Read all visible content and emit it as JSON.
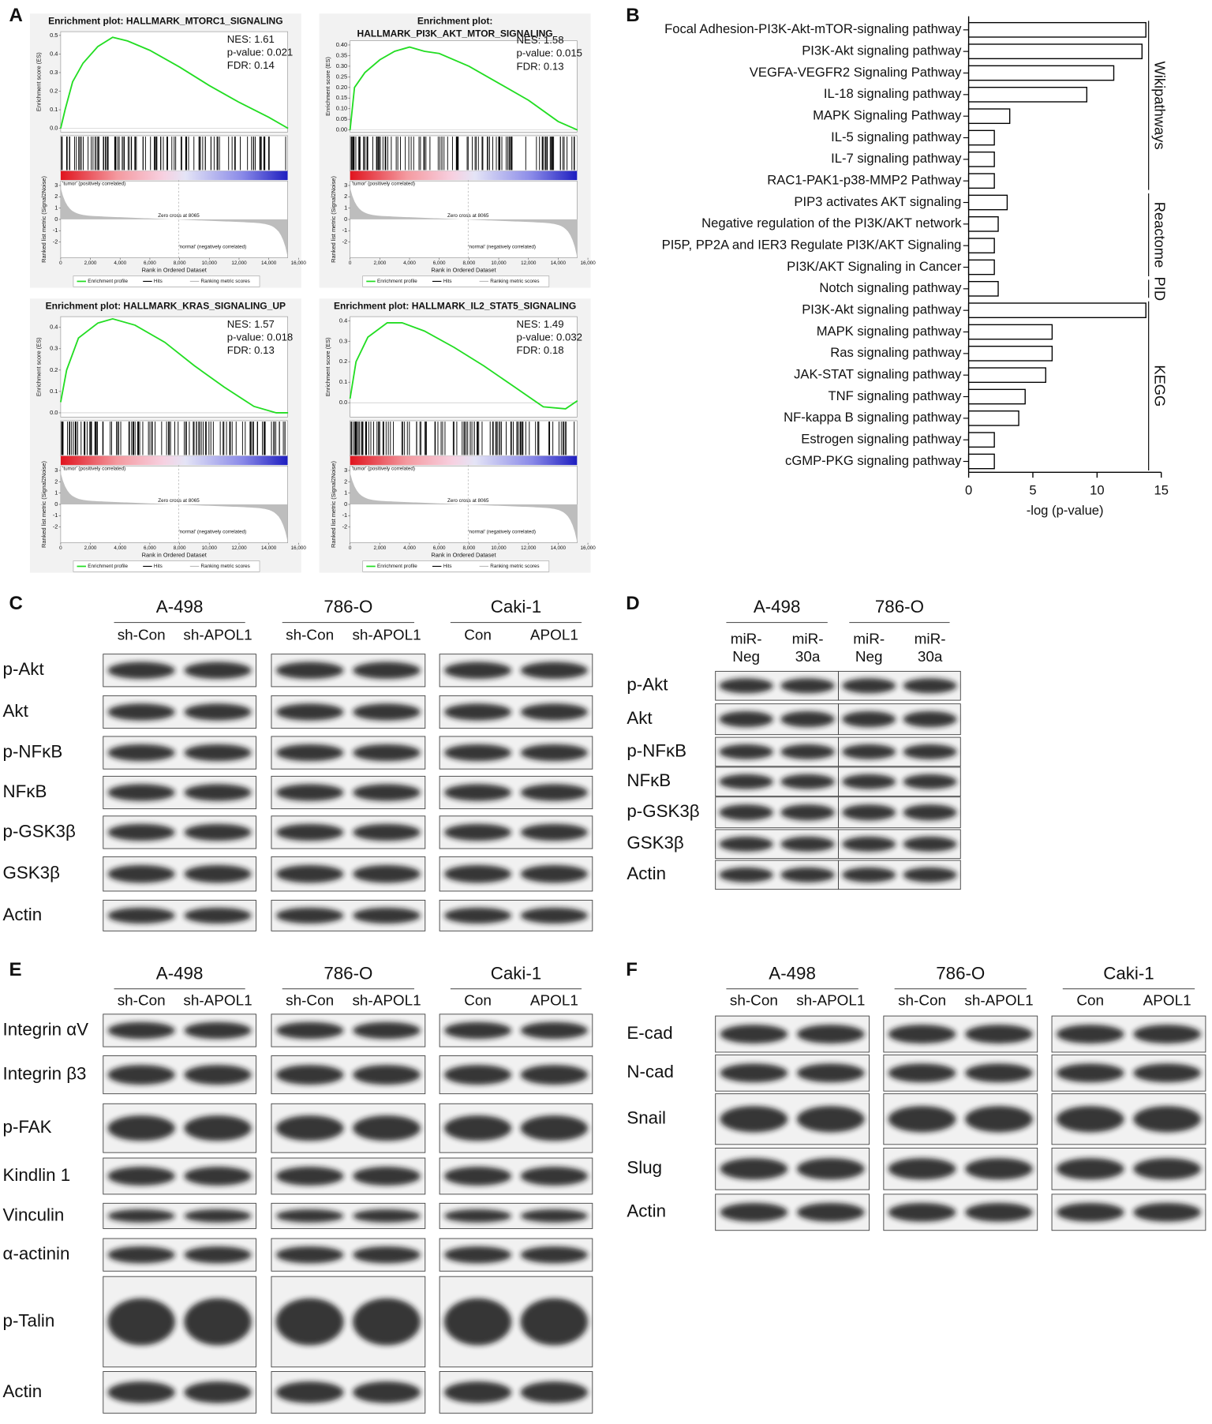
{
  "panel_labels": [
    "A",
    "B"
  ],
  "chart_data": [
    {
      "type": "line",
      "title_lines": [
        "Enrichment plot: HALLMARK_MTORC1_SIGNALING"
      ],
      "stats": [
        "NES: 1.61",
        "p-value: 0.021",
        "FDR: 0.14"
      ],
      "y_label": "Enrichment score (ES)",
      "ylim": [
        -0.02,
        0.52
      ],
      "yticks": [
        {
          "value": 0,
          "label": "0.0"
        },
        0.1,
        0.2,
        0.3,
        0.4,
        0.5
      ],
      "x": [
        0,
        300,
        800,
        1500,
        2500,
        3500,
        4500,
        6000,
        8000,
        10000,
        12000,
        14000,
        15300
      ],
      "series": [
        {
          "name": "Enrichment profile",
          "color": "#22dd22",
          "values": [
            0,
            0.1,
            0.25,
            0.35,
            0.44,
            0.49,
            0.47,
            0.42,
            0.33,
            0.23,
            0.14,
            0.06,
            0
          ]
        }
      ],
      "legend_extra": [
        "Hits",
        "Ranking metric scores"
      ],
      "tumor_label": "'tumor' (positively correlated)",
      "normal_label": "'normal' (negatively correlated)",
      "zero_cross": "Zero cross at 8065",
      "metric_label": "Ranked list metric (Signal2Noise)",
      "metric_ylim": [
        -3.4,
        3.4
      ],
      "metric_yticks": [
        3,
        2,
        1,
        0,
        -1,
        -2
      ],
      "x_label": "Rank in Ordered Dataset",
      "xlim": [
        0,
        16000
      ],
      "xticks": [
        0,
        {
          "value": 2000,
          "label": "2,000"
        },
        {
          "value": 4000,
          "label": "4,000"
        },
        {
          "value": 6000,
          "label": "6,000"
        },
        {
          "value": 8000,
          "label": "8,000"
        },
        {
          "value": 10000,
          "label": "10,000"
        },
        {
          "value": 12000,
          "label": "12,000"
        },
        {
          "value": 14000,
          "label": "14,000"
        },
        {
          "value": 16000,
          "label": "16,000"
        }
      ]
    },
    {
      "type": "line",
      "title_lines": [
        "Enrichment plot:",
        "HALLMARK_PI3K_AKT_MTOR_SIGNALING"
      ],
      "stats": [
        "NES: 1.58",
        "p-value: 0.015",
        "FDR: 0.13"
      ],
      "y_label": "Enrichment score (ES)",
      "ylim": [
        -0.01,
        0.42
      ],
      "yticks": [
        {
          "value": 0,
          "label": "0.00"
        },
        0.05,
        {
          "value": 0.1,
          "label": "0.10"
        },
        0.15,
        {
          "value": 0.2,
          "label": "0.20"
        },
        0.25,
        {
          "value": 0.3,
          "label": "0.30"
        },
        0.35,
        {
          "value": 0.4,
          "label": "0.40"
        }
      ],
      "x": [
        0,
        300,
        1000,
        2000,
        3000,
        4000,
        5000,
        6000,
        8000,
        10000,
        12000,
        14000,
        15300
      ],
      "series": [
        {
          "name": "Enrichment profile",
          "color": "#22dd22",
          "values": [
            0,
            0.2,
            0.27,
            0.33,
            0.37,
            0.39,
            0.37,
            0.36,
            0.3,
            0.22,
            0.14,
            0.04,
            0
          ]
        }
      ],
      "legend_extra": [
        "Hits",
        "Ranking metric scores"
      ],
      "tumor_label": "'tumor' (positively correlated)",
      "normal_label": "'normal' (negatively correlated)",
      "zero_cross": "Zero cross at 8065",
      "metric_label": "Ranked list metric (Signal2Noise)",
      "metric_ylim": [
        -3.4,
        3.4
      ],
      "metric_yticks": [
        3,
        2,
        1,
        0,
        -1,
        -2
      ],
      "x_label": "Rank in Ordered Dataset",
      "xlim": [
        0,
        16000
      ],
      "xticks": [
        0,
        {
          "value": 2000,
          "label": "2,000"
        },
        {
          "value": 4000,
          "label": "4,000"
        },
        {
          "value": 6000,
          "label": "6,000"
        },
        {
          "value": 8000,
          "label": "8,000"
        },
        {
          "value": 10000,
          "label": "10,000"
        },
        {
          "value": 12000,
          "label": "12,000"
        },
        {
          "value": 14000,
          "label": "14,000"
        },
        {
          "value": 16000,
          "label": "16,000"
        }
      ]
    },
    {
      "type": "line",
      "title_lines": [
        "Enrichment plot: HALLMARK_KRAS_SIGNALING_UP"
      ],
      "stats": [
        "NES: 1.57",
        "p-value: 0.018",
        "FDR: 0.13"
      ],
      "y_label": "Enrichment score (ES)",
      "ylim": [
        -0.02,
        0.45
      ],
      "yticks": [
        {
          "value": 0,
          "label": "0.0"
        },
        0.1,
        0.2,
        0.3,
        0.4
      ],
      "x": [
        0,
        400,
        1200,
        2500,
        3500,
        5000,
        7000,
        9000,
        11000,
        13000,
        14500,
        15300
      ],
      "series": [
        {
          "name": "Enrichment profile",
          "color": "#22dd22",
          "values": [
            0.05,
            0.2,
            0.35,
            0.42,
            0.44,
            0.41,
            0.33,
            0.22,
            0.12,
            0.03,
            0,
            0
          ]
        }
      ],
      "legend_extra": [
        "Hits",
        "Ranking metric scores"
      ],
      "tumor_label": "'tumor' (positively correlated)",
      "normal_label": "'normal' (negatively correlated)",
      "zero_cross": "Zero cross at 8065",
      "metric_label": "Ranked list metric (Signal2Noise)",
      "metric_ylim": [
        -3.4,
        3.4
      ],
      "metric_yticks": [
        3,
        2,
        1,
        0,
        -1,
        -2
      ],
      "x_label": "Rank in Ordered Dataset",
      "xlim": [
        0,
        16000
      ],
      "xticks": [
        0,
        {
          "value": 2000,
          "label": "2,000"
        },
        {
          "value": 4000,
          "label": "4,000"
        },
        {
          "value": 6000,
          "label": "6,000"
        },
        {
          "value": 8000,
          "label": "8,000"
        },
        {
          "value": 10000,
          "label": "10,000"
        },
        {
          "value": 12000,
          "label": "12,000"
        },
        {
          "value": 14000,
          "label": "14,000"
        },
        {
          "value": 16000,
          "label": "16,000"
        }
      ]
    },
    {
      "type": "line",
      "title_lines": [
        "Enrichment plot: HALLMARK_IL2_STAT5_SIGNALING"
      ],
      "stats": [
        "NES: 1.49",
        "p-value: 0.032",
        "FDR: 0.18"
      ],
      "y_label": "Enrichment score (ES)",
      "ylim": [
        -0.07,
        0.42
      ],
      "yticks": [
        {
          "value": 0,
          "label": "0.0"
        },
        0.1,
        0.2,
        0.3,
        0.4
      ],
      "x": [
        0,
        400,
        1200,
        2500,
        3500,
        5000,
        7000,
        9000,
        11000,
        13000,
        14500,
        15300
      ],
      "series": [
        {
          "name": "Enrichment profile",
          "color": "#22dd22",
          "values": [
            0.02,
            0.2,
            0.32,
            0.39,
            0.39,
            0.35,
            0.27,
            0.18,
            0.08,
            -0.02,
            -0.03,
            0.01
          ]
        }
      ],
      "legend_extra": [
        "Hits",
        "Ranking metric scores"
      ],
      "tumor_label": "'tumor' (positively correlated)",
      "normal_label": "'normal' (negatively correlated)",
      "zero_cross": "Zero cross at 8065",
      "metric_label": "Ranked list metric (Signal2Noise)",
      "metric_ylim": [
        -3.4,
        3.4
      ],
      "metric_yticks": [
        3,
        2,
        1,
        0,
        -1,
        -2
      ],
      "x_label": "Rank in Ordered Dataset",
      "xlim": [
        0,
        16000
      ],
      "xticks": [
        0,
        {
          "value": 2000,
          "label": "2,000"
        },
        {
          "value": 4000,
          "label": "4,000"
        },
        {
          "value": 6000,
          "label": "6,000"
        },
        {
          "value": 8000,
          "label": "8,000"
        },
        {
          "value": 10000,
          "label": "10,000"
        },
        {
          "value": 12000,
          "label": "12,000"
        },
        {
          "value": 14000,
          "label": "14,000"
        },
        {
          "value": 16000,
          "label": "16,000"
        }
      ]
    },
    {
      "type": "bar",
      "orientation": "horizontal",
      "color": "#ffffff",
      "edgecolor": "#000000",
      "x_label": "-log (p-value)",
      "xlim": [
        0,
        15
      ],
      "xticks": [
        0,
        5,
        10,
        15
      ],
      "groups": [
        {
          "name": "Wikipathways",
          "categories": [
            "Focal Adhesion-PI3K-Akt-mTOR-signaling pathway",
            "PI3K-Akt signaling pathway",
            "VEGFA-VEGFR2 Signaling Pathway",
            "IL-18 signaling pathway",
            "MAPK Signaling Pathway",
            "IL-5 signaling pathway",
            "IL-7 signaling pathway",
            "RAC1-PAK1-p38-MMP2 Pathway"
          ],
          "values": [
            13.8,
            13.5,
            11.3,
            9.2,
            3.2,
            2.0,
            2.0,
            2.0
          ]
        },
        {
          "name": "Reactome",
          "categories": [
            "PIP3 activates AKT signaling",
            "Negative regulation of the PI3K/AKT network",
            "PI5P, PP2A and IER3 Regulate PI3K/AKT Signaling",
            "PI3K/AKT Signaling in Cancer"
          ],
          "values": [
            3.0,
            2.3,
            2.0,
            2.0
          ]
        },
        {
          "name": "PID",
          "categories": [
            "Notch signaling pathway"
          ],
          "values": [
            2.3
          ]
        },
        {
          "name": "KEGG",
          "categories": [
            "PI3K-Akt signaling pathway",
            "MAPK signaling pathway",
            "Ras signaling pathway",
            "JAK-STAT signaling pathway",
            "TNF signaling pathway",
            "NF-kappa B signaling pathway",
            "Estrogen signaling pathway",
            "cGMP-PKG signaling pathway"
          ],
          "values": [
            13.8,
            6.5,
            6.5,
            6.0,
            4.4,
            3.9,
            2.0,
            2.0
          ]
        }
      ]
    }
  ],
  "blots": [
    {
      "label": "C",
      "groups": [
        {
          "name": "A-498",
          "lanes": [
            "sh-Con",
            "sh-APOL1"
          ]
        },
        {
          "name": "786-O",
          "lanes": [
            "sh-Con",
            "sh-APOL1"
          ]
        },
        {
          "name": "Caki-1",
          "lanes": [
            "Con",
            "APOL1"
          ]
        }
      ],
      "rows": [
        "p-Akt",
        "Akt",
        "p-NFκB",
        "NFκB",
        "p-GSK3β",
        "GSK3β",
        "Actin"
      ]
    },
    {
      "label": "D",
      "groups": [
        {
          "name": "A-498",
          "lanes": [
            [
              "miR-",
              "Neg"
            ],
            [
              "miR-",
              "30a"
            ]
          ]
        },
        {
          "name": "786-O",
          "lanes": [
            [
              "miR-",
              "Neg"
            ],
            [
              "miR-",
              "30a"
            ]
          ]
        }
      ],
      "rows": [
        "p-Akt",
        "Akt",
        "p-NFκB",
        "NFκB",
        "p-GSK3β",
        "GSK3β",
        "Actin"
      ]
    },
    {
      "label": "E",
      "groups": [
        {
          "name": "A-498",
          "lanes": [
            "sh-Con",
            "sh-APOL1"
          ]
        },
        {
          "name": "786-O",
          "lanes": [
            "sh-Con",
            "sh-APOL1"
          ]
        },
        {
          "name": "Caki-1",
          "lanes": [
            "Con",
            "APOL1"
          ]
        }
      ],
      "rows": [
        "Integrin αV",
        "Integrin β3",
        "p-FAK",
        "Kindlin 1",
        "Vinculin",
        "α-actinin",
        "p-Talin",
        "Actin"
      ]
    },
    {
      "label": "F",
      "groups": [
        {
          "name": "A-498",
          "lanes": [
            "sh-Con",
            "sh-APOL1"
          ]
        },
        {
          "name": "786-O",
          "lanes": [
            "sh-Con",
            "sh-APOL1"
          ]
        },
        {
          "name": "Caki-1",
          "lanes": [
            "Con",
            "APOL1"
          ]
        }
      ],
      "rows": [
        "E-cad",
        "N-cad",
        "Snail",
        "Slug",
        "Actin"
      ]
    }
  ]
}
